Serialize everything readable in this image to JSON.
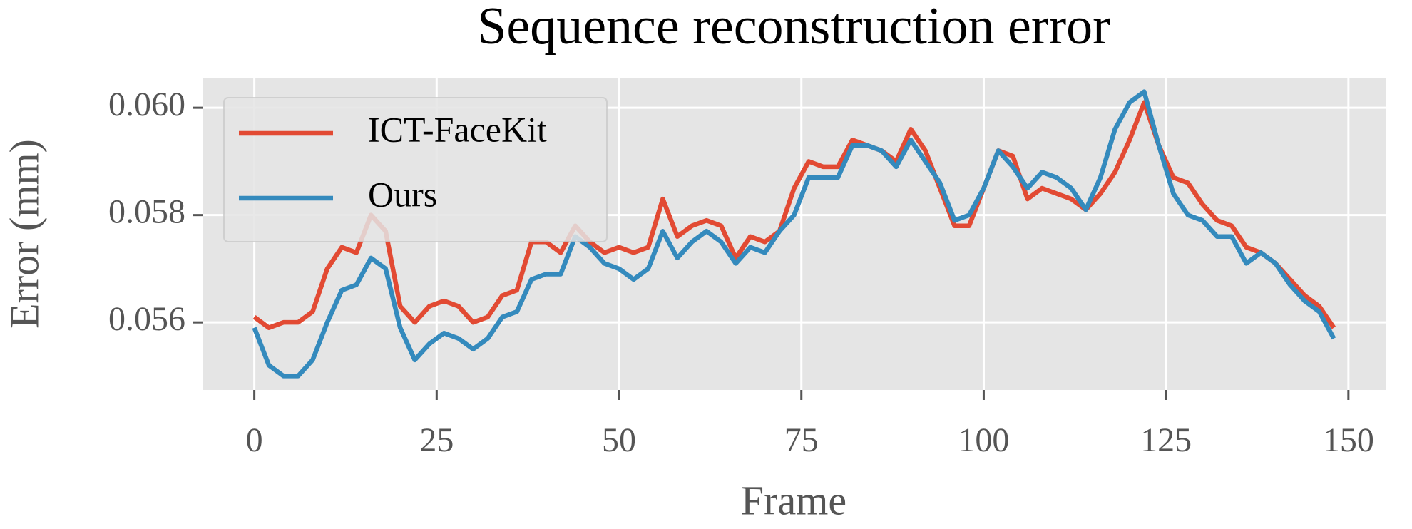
{
  "chart_data": {
    "type": "line",
    "title": "Sequence reconstruction error",
    "xlabel": "Frame",
    "ylabel": "Error (mm)",
    "x": [
      0,
      2,
      4,
      6,
      8,
      10,
      12,
      14,
      16,
      18,
      20,
      22,
      24,
      26,
      28,
      30,
      32,
      34,
      36,
      38,
      40,
      42,
      44,
      46,
      48,
      50,
      52,
      54,
      56,
      58,
      60,
      62,
      64,
      66,
      68,
      70,
      72,
      74,
      76,
      78,
      80,
      82,
      84,
      86,
      88,
      90,
      92,
      94,
      96,
      98,
      100,
      102,
      104,
      106,
      108,
      110,
      112,
      114,
      116,
      118,
      120,
      122,
      124,
      126,
      128,
      130,
      132,
      134,
      136,
      138,
      140,
      142,
      144,
      146,
      148
    ],
    "series": [
      {
        "name": "ICT-FaceKit",
        "color": "#E24A33",
        "values": [
          0.0561,
          0.0559,
          0.056,
          0.056,
          0.0562,
          0.057,
          0.0574,
          0.0573,
          0.058,
          0.0577,
          0.0563,
          0.056,
          0.0563,
          0.0564,
          0.0563,
          0.056,
          0.0561,
          0.0565,
          0.0566,
          0.0575,
          0.0575,
          0.0573,
          0.0578,
          0.0575,
          0.0573,
          0.0574,
          0.0573,
          0.0574,
          0.0583,
          0.0576,
          0.0578,
          0.0579,
          0.0578,
          0.0572,
          0.0576,
          0.0575,
          0.0577,
          0.0585,
          0.059,
          0.0589,
          0.0589,
          0.0594,
          0.0593,
          0.0592,
          0.059,
          0.0596,
          0.0592,
          0.0585,
          0.0578,
          0.0578,
          0.0585,
          0.0592,
          0.0591,
          0.0583,
          0.0585,
          0.0584,
          0.0583,
          0.0581,
          0.0584,
          0.0588,
          0.0594,
          0.0601,
          0.0593,
          0.0587,
          0.0586,
          0.0582,
          0.0579,
          0.0578,
          0.0574,
          0.0573,
          0.0571,
          0.0568,
          0.0565,
          0.0563,
          0.0559
        ]
      },
      {
        "name": "Ours",
        "color": "#348ABD",
        "values": [
          0.0559,
          0.0552,
          0.055,
          0.055,
          0.0553,
          0.056,
          0.0566,
          0.0567,
          0.0572,
          0.057,
          0.0559,
          0.0553,
          0.0556,
          0.0558,
          0.0557,
          0.0555,
          0.0557,
          0.0561,
          0.0562,
          0.0568,
          0.0569,
          0.0569,
          0.0576,
          0.0574,
          0.0571,
          0.057,
          0.0568,
          0.057,
          0.0577,
          0.0572,
          0.0575,
          0.0577,
          0.0575,
          0.0571,
          0.0574,
          0.0573,
          0.0577,
          0.058,
          0.0587,
          0.0587,
          0.0587,
          0.0593,
          0.0593,
          0.0592,
          0.0589,
          0.0594,
          0.059,
          0.0586,
          0.0579,
          0.058,
          0.0585,
          0.0592,
          0.0589,
          0.0585,
          0.0588,
          0.0587,
          0.0585,
          0.0581,
          0.0587,
          0.0596,
          0.0601,
          0.0603,
          0.0593,
          0.0584,
          0.058,
          0.0579,
          0.0576,
          0.0576,
          0.0571,
          0.0573,
          0.0571,
          0.0567,
          0.0564,
          0.0562,
          0.0557
        ]
      }
    ],
    "xlim": [
      -7.1,
      155.1
    ],
    "ylim": [
      0.05474,
      0.06056
    ],
    "xticks": [
      0,
      25,
      50,
      75,
      100,
      125,
      150
    ],
    "yticks": [
      0.056,
      0.058,
      {
        "value": 0.06,
        "label": "0.060"
      }
    ],
    "grid": true,
    "legend": "upper left"
  }
}
